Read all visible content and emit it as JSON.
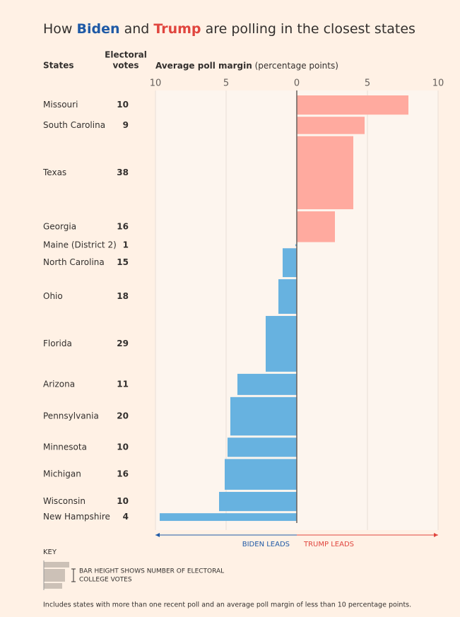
{
  "chart_data": {
    "type": "bar",
    "title": {
      "start": "How",
      "biden": "Biden",
      "and": "and",
      "trump": "Trump",
      "end": "are polling in the closest states"
    },
    "title_colors": {
      "biden": "#1f5aa6",
      "trump": "#e0453e"
    },
    "headers": {
      "states": "States",
      "electoral_line1": "Electoral",
      "electoral_line2": "votes",
      "margin": "Average poll margin",
      "margin_unit": "(percentage points)"
    },
    "categories": [
      "Missouri",
      "South Carolina",
      "Texas",
      "Georgia",
      "Maine (District 2)",
      "North Carolina",
      "Ohio",
      "Florida",
      "Arizona",
      "Pennsylvania",
      "Minnesota",
      "Michigan",
      "Wisconsin",
      "New Hampshire"
    ],
    "electoral_votes": [
      10,
      9,
      38,
      16,
      1,
      15,
      18,
      29,
      11,
      20,
      10,
      16,
      10,
      4
    ],
    "values": [
      7.9,
      4.8,
      4.0,
      2.7,
      -0.1,
      -1.0,
      -1.3,
      -2.2,
      -4.2,
      -4.7,
      -4.9,
      -5.1,
      -5.5,
      -9.7
    ],
    "colors": {
      "positive": "#ffaa9f",
      "negative": "#67b2e0"
    },
    "xlim": [
      -10,
      10
    ],
    "xticks": [
      {
        "value": -10,
        "label": "10"
      },
      {
        "value": -5,
        "label": "5"
      },
      0,
      5,
      10
    ],
    "grid": true,
    "direction_labels": {
      "left": "BIDEN LEADS",
      "right": "TRUMP LEADS"
    },
    "direction_colors": {
      "left": "#1f5aa6",
      "right": "#e0453e"
    },
    "key": {
      "title": "KEY",
      "line1": "BAR HEIGHT SHOWS NUMBER OF ELECTORAL",
      "line2": "COLLEGE VOTES"
    },
    "footnote": "Includes states with more than one recent poll and an average poll margin of less than 10 percentage points."
  }
}
